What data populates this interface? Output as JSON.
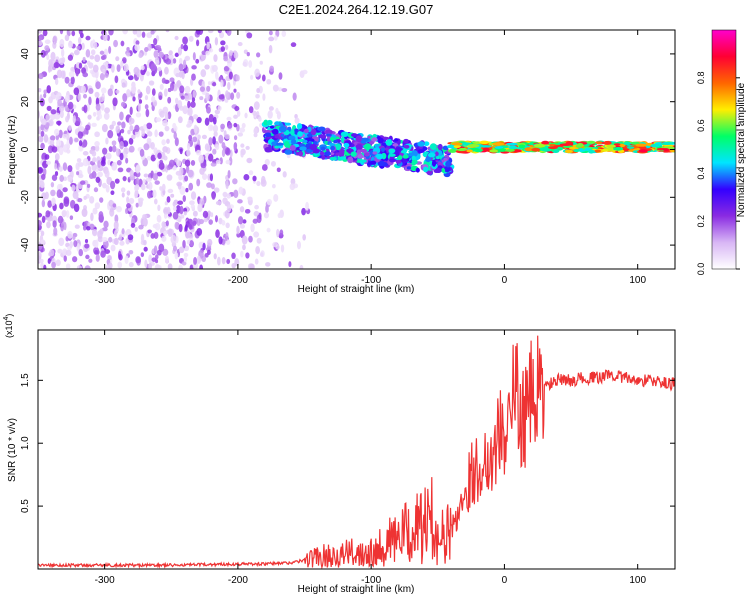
{
  "figure_title": "C2E1.2024.264.12.19.G07",
  "chart_data": [
    {
      "type": "heatmap",
      "title": "C2E1.2024.264.12.19.G07",
      "xlabel": "Height of straight line (km)",
      "ylabel": "Frequency (Hz)",
      "xlim": [
        -350,
        128
      ],
      "ylim": [
        -50,
        50
      ],
      "xticks": [
        -300,
        -200,
        -100,
        0,
        100
      ],
      "yticks": [
        -40,
        -20,
        0,
        20,
        40
      ],
      "colorbar": {
        "label": "Normalized spectral amplitude",
        "range": [
          0.0,
          1.0
        ],
        "ticks": [
          0.0,
          0.2,
          0.4,
          0.6,
          0.8
        ],
        "colormap": [
          "#ffffff",
          "#d8b6f5",
          "#8a2be2",
          "#3300ff",
          "#00e5ff",
          "#00ff66",
          "#ffee00",
          "#ff6600",
          "#ff0033",
          "#ff00cc"
        ]
      },
      "regions": [
        {
          "x_range": [
            -350,
            -140
          ],
          "freq_range": [
            -50,
            50
          ],
          "amplitude": 0.15
        },
        {
          "x_range": [
            -180,
            -40
          ],
          "freq_center_start": 6,
          "freq_center_end": -5,
          "freq_spread": 6,
          "amplitude": 0.35
        },
        {
          "x_range": [
            -40,
            128
          ],
          "freq_center": 1,
          "freq_spread": 2,
          "amplitude": 0.75
        }
      ]
    },
    {
      "type": "line",
      "xlabel": "Height of straight line (km)",
      "ylabel": "SNR (10 * v/v)",
      "y_scale_label": "(x10",
      "y_scale_exp": "4",
      "xlim": [
        -350,
        128
      ],
      "ylim": [
        0,
        1.9
      ],
      "xticks": [
        -300,
        -200,
        -100,
        0,
        100
      ],
      "yticks": [
        0.5,
        1.0,
        1.5
      ],
      "color": "#ee3333",
      "x": [
        -350,
        -300,
        -250,
        -200,
        -180,
        -160,
        -150,
        -140,
        -120,
        -100,
        -90,
        -80,
        -70,
        -60,
        -55,
        -50,
        -45,
        -40,
        -35,
        -30,
        -25,
        -20,
        -15,
        -10,
        -5,
        0,
        5,
        8,
        10,
        15,
        20,
        25,
        30,
        40,
        50,
        60,
        70,
        80,
        90,
        100,
        110,
        120,
        128
      ],
      "y": [
        0.03,
        0.03,
        0.03,
        0.04,
        0.04,
        0.05,
        0.07,
        0.1,
        0.12,
        0.15,
        0.2,
        0.25,
        0.3,
        0.35,
        0.4,
        0.28,
        0.25,
        0.3,
        0.45,
        0.6,
        0.75,
        0.8,
        0.85,
        0.9,
        1.05,
        1.1,
        1.2,
        1.5,
        1.3,
        1.2,
        1.35,
        1.4,
        1.45,
        1.5,
        1.5,
        1.52,
        1.52,
        1.55,
        1.52,
        1.5,
        1.5,
        1.48,
        1.47
      ]
    }
  ]
}
